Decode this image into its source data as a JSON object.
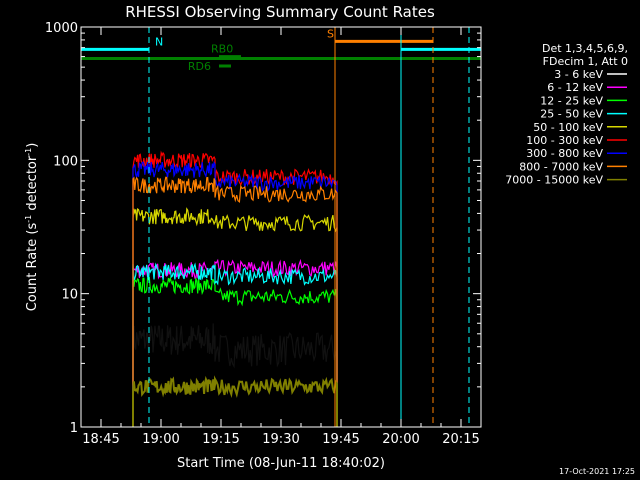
{
  "chart_data": {
    "type": "line",
    "title": "RHESSI Observing Summary Count Rates",
    "xlabel": "Start Time (08-Jun-11 18:40:02)",
    "ylabel": "Count Rate (s",
    "ylabel_sup1": "-1",
    "ylabel_mid": " detector",
    "ylabel_sup2": "-1",
    "ylabel_end": ")",
    "y_scale": "log",
    "xlim_minutes": [
      0,
      100
    ],
    "ylim": [
      1,
      1000
    ],
    "x_ticks": [
      {
        "minute": 5,
        "label": "18:45"
      },
      {
        "minute": 20,
        "label": "19:00"
      },
      {
        "minute": 35,
        "label": "19:15"
      },
      {
        "minute": 50,
        "label": "19:30"
      },
      {
        "minute": 65,
        "label": "19:45"
      },
      {
        "minute": 80,
        "label": "20:00"
      },
      {
        "minute": 95,
        "label": "20:15"
      }
    ],
    "y_ticks": [
      {
        "value": 1,
        "label": "1"
      },
      {
        "value": 10,
        "label": "10"
      },
      {
        "value": 100,
        "label": "100"
      },
      {
        "value": 1000,
        "label": "1000"
      }
    ],
    "legend_header": [
      "Det 1,3,4,5,6,9,",
      "FDecim 1, Att 0"
    ],
    "series": [
      {
        "name": "3 - 6 keV",
        "color": "#000000",
        "segments": [
          [
            13,
            4.5
          ],
          [
            33.5,
            3.8
          ]
        ]
      },
      {
        "name": "6 - 12 keV",
        "color": "#ff00ff",
        "segments": [
          [
            13,
            15
          ],
          [
            33.5,
            15.5
          ]
        ]
      },
      {
        "name": "12 - 25 keV",
        "color": "#00ff00",
        "segments": [
          [
            13,
            11.5
          ],
          [
            33.5,
            9.5
          ]
        ]
      },
      {
        "name": "25 - 50 keV",
        "color": "#00ffff",
        "segments": [
          [
            13,
            14.5
          ],
          [
            33.5,
            13.5
          ]
        ]
      },
      {
        "name": "50 - 100 keV",
        "color": "#d7d700",
        "segments": [
          [
            13,
            38
          ],
          [
            33.5,
            34
          ]
        ]
      },
      {
        "name": "100 - 300 keV",
        "color": "#ff0000",
        "segments": [
          [
            13,
            100
          ],
          [
            33.5,
            75
          ]
        ]
      },
      {
        "name": "300 - 800 keV",
        "color": "#0000ff",
        "segments": [
          [
            13,
            85
          ],
          [
            33.5,
            68
          ]
        ]
      },
      {
        "name": "800 - 7000 keV",
        "color": "#ff8000",
        "segments": [
          [
            13,
            65
          ],
          [
            33.5,
            56
          ]
        ]
      },
      {
        "name": "7000 - 15000 keV",
        "color": "#808000",
        "segments": [
          [
            13,
            2
          ],
          [
            33.5,
            2
          ]
        ]
      }
    ],
    "data_interval_minutes": [
      13,
      64
    ],
    "gap_minute": 33.5,
    "flags": [
      {
        "label": "N",
        "color": "#00ffff",
        "y": 680,
        "intervals": [
          [
            0,
            17
          ],
          [
            80,
            100
          ]
        ]
      },
      {
        "label": "S",
        "color": "#ff8000",
        "y": 780,
        "intervals": [
          [
            63.5,
            88
          ]
        ]
      },
      {
        "label": "RD6",
        "color": "#008000",
        "y": 510,
        "intervals": [
          [
            34.5,
            37.5
          ]
        ]
      },
      {
        "label": "RB0",
        "color": "#008000",
        "y": 600,
        "intervals": [
          [
            34.5,
            40
          ]
        ]
      },
      {
        "label": "",
        "color": "#008000",
        "y": 580,
        "intervals": [
          [
            0,
            100
          ]
        ]
      }
    ],
    "vlines": [
      {
        "minute": 17,
        "color": "#00ffff",
        "style": "dashed"
      },
      {
        "minute": 63.5,
        "color": "#ff8000",
        "style": "solid"
      },
      {
        "minute": 80,
        "color": "#00ffff",
        "style": "solid"
      },
      {
        "minute": 88,
        "color": "#ff8000",
        "style": "dashed"
      },
      {
        "minute": 97,
        "color": "#00ffff",
        "style": "dashed"
      }
    ]
  },
  "footer": {
    "timestamp": "17-Oct-2021 17:25"
  }
}
